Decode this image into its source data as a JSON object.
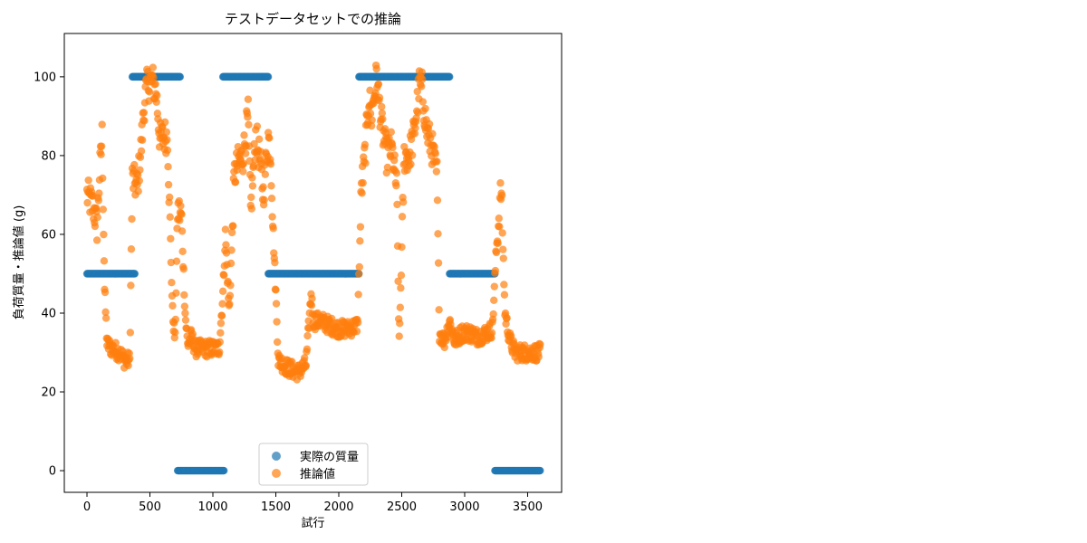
{
  "chart_data": {
    "type": "scatter",
    "title": "テストデータセットでの推論",
    "xlabel": "試行",
    "ylabel": "負荷質量・推論値 (g)",
    "xlim": [
      -180,
      3770
    ],
    "ylim": [
      -5.5,
      111
    ],
    "xticks": [
      0,
      500,
      1000,
      1500,
      2000,
      2500,
      3000,
      3500
    ],
    "yticks": [
      0,
      20,
      40,
      60,
      80,
      100
    ],
    "grid": false,
    "legend_position": "bottom-center",
    "series": [
      {
        "name": "実際の質量",
        "color": "#1f77b4",
        "segments": [
          {
            "x_start": 0,
            "x_end": 380,
            "y": 50
          },
          {
            "x_start": 360,
            "x_end": 740,
            "y": 100
          },
          {
            "x_start": 720,
            "x_end": 1090,
            "y": 0
          },
          {
            "x_start": 1080,
            "x_end": 1440,
            "y": 100
          },
          {
            "x_start": 1440,
            "x_end": 2160,
            "y": 50
          },
          {
            "x_start": 2160,
            "x_end": 2880,
            "y": 100
          },
          {
            "x_start": 2880,
            "x_end": 3240,
            "y": 50
          },
          {
            "x_start": 3240,
            "x_end": 3600,
            "y": 0
          }
        ]
      },
      {
        "name": "推論値",
        "color": "#ff7f0e",
        "profile": [
          [
            0,
            70
          ],
          [
            50,
            67
          ],
          [
            80,
            62
          ],
          [
            100,
            75
          ],
          [
            120,
            85
          ],
          [
            140,
            46
          ],
          [
            160,
            32
          ],
          [
            200,
            31
          ],
          [
            260,
            30
          ],
          [
            300,
            28
          ],
          [
            340,
            28
          ],
          [
            360,
            74
          ],
          [
            400,
            72
          ],
          [
            430,
            82
          ],
          [
            460,
            95
          ],
          [
            480,
            98
          ],
          [
            520,
            99
          ],
          [
            550,
            96
          ],
          [
            580,
            84
          ],
          [
            620,
            85
          ],
          [
            640,
            85
          ],
          [
            680,
            40
          ],
          [
            700,
            33
          ],
          [
            720,
            66
          ],
          [
            750,
            65
          ],
          [
            780,
            40
          ],
          [
            800,
            32
          ],
          [
            830,
            34
          ],
          [
            860,
            31
          ],
          [
            900,
            31
          ],
          [
            950,
            31
          ],
          [
            1000,
            31
          ],
          [
            1050,
            31
          ],
          [
            1080,
            45
          ],
          [
            1100,
            60
          ],
          [
            1130,
            40
          ],
          [
            1170,
            75
          ],
          [
            1200,
            78
          ],
          [
            1240,
            80
          ],
          [
            1280,
            90
          ],
          [
            1300,
            66
          ],
          [
            1340,
            85
          ],
          [
            1370,
            80
          ],
          [
            1400,
            70
          ],
          [
            1440,
            85
          ],
          [
            1460,
            80
          ],
          [
            1480,
            60
          ],
          [
            1500,
            45
          ],
          [
            1520,
            28
          ],
          [
            1600,
            26
          ],
          [
            1680,
            25
          ],
          [
            1740,
            27
          ],
          [
            1780,
            45
          ],
          [
            1800,
            38
          ],
          [
            1860,
            38
          ],
          [
            1920,
            37
          ],
          [
            2000,
            36
          ],
          [
            2080,
            36
          ],
          [
            2150,
            37
          ],
          [
            2180,
            72
          ],
          [
            2200,
            77
          ],
          [
            2240,
            95
          ],
          [
            2260,
            90
          ],
          [
            2300,
            100
          ],
          [
            2340,
            88
          ],
          [
            2380,
            80
          ],
          [
            2420,
            82
          ],
          [
            2460,
            72
          ],
          [
            2480,
            32
          ],
          [
            2520,
            80
          ],
          [
            2560,
            80
          ],
          [
            2600,
            86
          ],
          [
            2640,
            98
          ],
          [
            2660,
            97
          ],
          [
            2700,
            86
          ],
          [
            2740,
            82
          ],
          [
            2780,
            75
          ],
          [
            2800,
            35
          ],
          [
            2840,
            33
          ],
          [
            2880,
            38
          ],
          [
            2920,
            33
          ],
          [
            2980,
            35
          ],
          [
            3040,
            35
          ],
          [
            3100,
            34
          ],
          [
            3180,
            35
          ],
          [
            3220,
            36
          ],
          [
            3250,
            55
          ],
          [
            3290,
            72
          ],
          [
            3320,
            40
          ],
          [
            3360,
            33
          ],
          [
            3400,
            30
          ],
          [
            3460,
            30
          ],
          [
            3520,
            30
          ],
          [
            3600,
            30
          ]
        ]
      }
    ]
  }
}
